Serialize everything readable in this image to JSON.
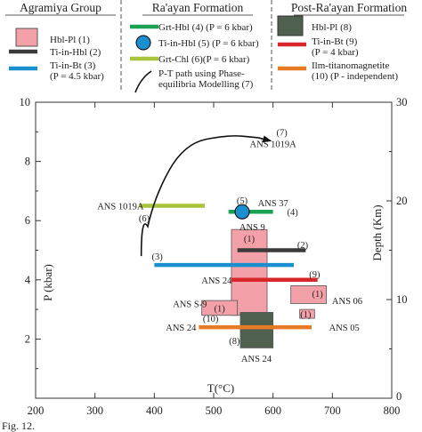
{
  "caption": "Fig. 12.",
  "legend": {
    "groups": [
      {
        "title": "Agramiya Group",
        "items": [
          {
            "kind": "box",
            "color": "#f4a0a8",
            "text": [
              "Hbl-Pl (1)"
            ]
          },
          {
            "kind": "line",
            "color": "#3a3a3a",
            "text": [
              "Ti-in-Hbl (2)"
            ]
          },
          {
            "kind": "line",
            "color": "#1a8fd0",
            "text": [
              "Ti-in-Bt (3)",
              "(P = 4.5 kbar)"
            ]
          }
        ]
      },
      {
        "title": "Ra'ayan Formation",
        "items": [
          {
            "kind": "line",
            "color": "#1aa152",
            "text": [
              "Grt-Hbl (4) (P = 6 kbar)"
            ]
          },
          {
            "kind": "circle",
            "color": "#1a8fd0",
            "text": [
              "Ti-in-Hbl (5) (P = 6 kbar)"
            ]
          },
          {
            "kind": "line",
            "color": "#a9c43a",
            "text": [
              "Grt-Chl (6)(P = 6 kbar)"
            ]
          },
          {
            "kind": "curve",
            "color": "#111111",
            "text": [
              "P-T path using Phase-",
              "equilibria Modelling (7)"
            ]
          }
        ]
      },
      {
        "title": "Post-Ra'ayan Formation",
        "items": [
          {
            "kind": "box",
            "color": "#4f604f",
            "text": [
              "Hbl-Pl (8)"
            ]
          },
          {
            "kind": "line",
            "color": "#d8262b",
            "text": [
              "Ti-in-Bt (9)",
              "(P = 4 kbar)"
            ]
          },
          {
            "kind": "line",
            "color": "#e67a25",
            "text": [
              "Ilm-titanomagnetite",
              "(10) (P - independent)"
            ]
          }
        ]
      }
    ]
  },
  "chart_data": {
    "type": "range-plot",
    "xlabel": "T(°C)",
    "ylabel": "P (kbar)",
    "y2label": "Depth (Km)",
    "xlim": [
      200,
      800
    ],
    "ylim": [
      0,
      10
    ],
    "y2lim": [
      0,
      30
    ],
    "xticks": [
      200,
      300,
      400,
      500,
      600,
      700,
      800
    ],
    "yticks": [
      2,
      4,
      6,
      8,
      10
    ],
    "y2ticks": [
      10,
      20,
      30
    ],
    "boxes": [
      {
        "id": "1",
        "color": "#f4a0a8",
        "x": [
          530,
          590
        ],
        "y": [
          2.8,
          5.7
        ]
      },
      {
        "id": "1",
        "color": "#f4a0a8",
        "x": [
          630,
          690
        ],
        "y": [
          3.2,
          3.8
        ]
      },
      {
        "id": "1",
        "color": "#f4a0a8",
        "x": [
          645,
          670
        ],
        "y": [
          2.7,
          3.0
        ]
      },
      {
        "id": "1",
        "color": "#f4a0a8",
        "x": [
          480,
          540
        ],
        "y": [
          2.8,
          3.3
        ]
      },
      {
        "id": "8",
        "color": "#4f604f",
        "x": [
          545,
          600
        ],
        "y": [
          1.7,
          2.9
        ]
      }
    ],
    "segments": [
      {
        "id": "2",
        "color": "#3a3a3a",
        "x": [
          540,
          655
        ],
        "y": 5.0
      },
      {
        "id": "3",
        "color": "#1a8fd0",
        "x": [
          400,
          635
        ],
        "y": 4.5
      },
      {
        "id": "4",
        "color": "#1aa152",
        "x": [
          525,
          600
        ],
        "y": 6.3
      },
      {
        "id": "6",
        "color": "#a9c43a",
        "x": [
          375,
          485
        ],
        "y": 6.5
      },
      {
        "id": "9",
        "color": "#d8262b",
        "x": [
          530,
          675
        ],
        "y": 4.0
      },
      {
        "id": "10",
        "color": "#e67a25",
        "x": [
          475,
          665
        ],
        "y": 2.4
      }
    ],
    "points": [
      {
        "id": "5",
        "color": "#1a8fd0",
        "x": 548,
        "y": 6.3
      }
    ],
    "path": {
      "id": "7",
      "color": "#111111",
      "points": [
        [
          378,
          4.8
        ],
        [
          400,
          6.8
        ],
        [
          450,
          8.6
        ],
        [
          525,
          8.9
        ],
        [
          575,
          8.8
        ]
      ],
      "arrow_to": [
        595,
        8.7
      ]
    },
    "annotations": [
      {
        "text": "(7)",
        "x": 615,
        "y": 9.0
      },
      {
        "text": "ANS 1019A",
        "x": 600,
        "y": 8.6
      },
      {
        "text": "(5)",
        "x": 548,
        "y": 6.7
      },
      {
        "text": "ANS 37",
        "x": 600,
        "y": 6.6
      },
      {
        "text": "(4)",
        "x": 633,
        "y": 6.3
      },
      {
        "text": "ANS 1019A",
        "x": 343,
        "y": 6.5
      },
      {
        "text": "(6)",
        "x": 383,
        "y": 6.1
      },
      {
        "text": "ANS 9",
        "x": 565,
        "y": 5.8
      },
      {
        "text": "(1)",
        "x": 560,
        "y": 5.4
      },
      {
        "text": "(2)",
        "x": 650,
        "y": 5.2
      },
      {
        "text": "(3)",
        "x": 405,
        "y": 4.8
      },
      {
        "text": "(9)",
        "x": 670,
        "y": 4.2
      },
      {
        "text": "ANS 24",
        "x": 505,
        "y": 4.0
      },
      {
        "text": "(1)",
        "x": 675,
        "y": 3.55
      },
      {
        "text": "ANS 06",
        "x": 725,
        "y": 3.3
      },
      {
        "text": "ANS S-9",
        "x": 460,
        "y": 3.2
      },
      {
        "text": "(1)",
        "x": 510,
        "y": 3.05
      },
      {
        "text": "(1)",
        "x": 655,
        "y": 2.85
      },
      {
        "text": "(10)",
        "x": 495,
        "y": 2.7
      },
      {
        "text": "ANS 24",
        "x": 445,
        "y": 2.4
      },
      {
        "text": "ANS 05",
        "x": 720,
        "y": 2.4
      },
      {
        "text": "(8)",
        "x": 535,
        "y": 1.95
      },
      {
        "text": "ANS 24",
        "x": 572,
        "y": 1.35
      }
    ]
  }
}
